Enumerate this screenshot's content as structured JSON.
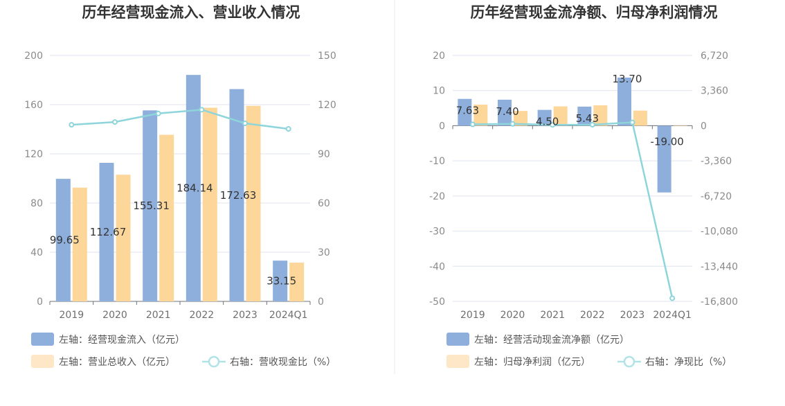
{
  "colors": {
    "primary_bar": "#8eaedc",
    "secondary_bar": "#fdd79a",
    "secondary_bar_legend": "#fde7c6",
    "line": "#8dd5da",
    "line_legend": "#b1e3e6",
    "grid": "#dfe3ef",
    "axis": "#6e7079",
    "divider": "#e8e8e8"
  },
  "chart_data": [
    {
      "type": "bar",
      "title": "历年经营现金流入、营业收入情况",
      "categories": [
        "2019",
        "2020",
        "2021",
        "2022",
        "2023",
        "2024Q1"
      ],
      "left_axis": {
        "ylim": [
          0,
          200
        ],
        "ticks": [
          "0",
          "40",
          "80",
          "120",
          "160",
          "200"
        ]
      },
      "right_axis": {
        "ylim": [
          0,
          150
        ],
        "ticks": [
          "0",
          "30",
          "60",
          "90",
          "120",
          "150"
        ]
      },
      "series": [
        {
          "name": "左轴：经营现金流入（亿元）",
          "axis": "left",
          "kind": "bar",
          "values": [
            99.65,
            112.67,
            155.31,
            184.14,
            172.63,
            33.15
          ],
          "labels": [
            "99.65",
            "112.67",
            "155.31",
            "184.14",
            "172.63",
            "33.15"
          ]
        },
        {
          "name": "左轴：营业总收入（亿元）",
          "axis": "left",
          "kind": "bar",
          "values": [
            92.5,
            103.0,
            135.5,
            157.5,
            159.0,
            31.5
          ]
        },
        {
          "name": "右轴：营收现金比（%）",
          "axis": "right",
          "kind": "line",
          "values": [
            107.7,
            109.4,
            114.6,
            116.9,
            108.6,
            105.2
          ]
        }
      ],
      "legend_position": "bottom-left"
    },
    {
      "type": "bar",
      "title": "历年经营现金流净额、归母净利润情况",
      "categories": [
        "2019",
        "2020",
        "2021",
        "2022",
        "2023",
        "2024Q1"
      ],
      "left_axis": {
        "ylim": [
          -50,
          20
        ],
        "ticks": [
          "-50",
          "-40",
          "-30",
          "-20",
          "-10",
          "0",
          "10",
          "20"
        ]
      },
      "right_axis": {
        "ylim": [
          -16800,
          6720
        ],
        "ticks": [
          "-16,800",
          "-13,440",
          "-10,080",
          "-6,720",
          "-3,360",
          "0",
          "3,360",
          "6,720"
        ]
      },
      "series": [
        {
          "name": "左轴：经营活动现金流净额（亿元）",
          "axis": "left",
          "kind": "bar",
          "values": [
            7.63,
            7.4,
            4.5,
            5.43,
            13.7,
            -19.0
          ],
          "labels": [
            "7.63",
            "7.40",
            "4.50",
            "5.43",
            "13.70",
            "-19.00"
          ]
        },
        {
          "name": "左轴：归母净利润（亿元）",
          "axis": "left",
          "kind": "bar",
          "values": [
            6.0,
            4.2,
            5.5,
            5.8,
            4.3,
            0.05
          ]
        },
        {
          "name": "右轴：净现比（%）",
          "axis": "right",
          "kind": "line",
          "values": [
            127,
            176,
            82,
            94,
            319,
            -16500
          ]
        }
      ],
      "legend_position": "bottom-left"
    }
  ]
}
